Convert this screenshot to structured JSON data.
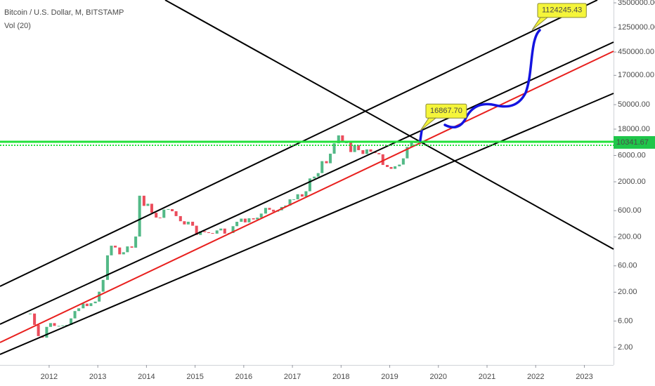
{
  "chart_data": {
    "type": "candlestick",
    "title": "Bitcoin / U.S. Dollar, M, BITSTAMP",
    "subtitle": "Vol (20)",
    "log_scale": true,
    "grid": false,
    "up_color": "#53b987",
    "down_color": "#eb4d5c",
    "x": [
      2011.58,
      2011.67,
      2011.75,
      2011.83,
      2011.92,
      2012.0,
      2012.08,
      2012.17,
      2012.25,
      2012.33,
      2012.42,
      2012.5,
      2012.58,
      2012.67,
      2012.75,
      2012.83,
      2012.92,
      2013.0,
      2013.08,
      2013.17,
      2013.25,
      2013.33,
      2013.42,
      2013.5,
      2013.58,
      2013.67,
      2013.75,
      2013.83,
      2013.92,
      2014.0,
      2014.08,
      2014.17,
      2014.25,
      2014.33,
      2014.42,
      2014.5,
      2014.58,
      2014.67,
      2014.75,
      2014.83,
      2014.92,
      2015.0,
      2015.08,
      2015.17,
      2015.25,
      2015.33,
      2015.42,
      2015.5,
      2015.58,
      2015.67,
      2015.75,
      2015.83,
      2015.92,
      2016.0,
      2016.08,
      2016.17,
      2016.25,
      2016.33,
      2016.42,
      2016.5,
      2016.58,
      2016.67,
      2016.75,
      2016.83,
      2016.92,
      2017.0,
      2017.08,
      2017.17,
      2017.25,
      2017.33,
      2017.42,
      2017.5,
      2017.58,
      2017.67,
      2017.75,
      2017.83,
      2017.92,
      2018.0,
      2018.08,
      2018.17,
      2018.25,
      2018.33,
      2018.42,
      2018.5,
      2018.58,
      2018.67,
      2018.75,
      2018.83,
      2018.92,
      2019.0,
      2019.08,
      2019.17,
      2019.25,
      2019.33,
      2019.42,
      2019.5,
      2019.58,
      2019.67
    ],
    "values": [
      8.2,
      5.1,
      3.2,
      3.0,
      4.7,
      5.5,
      4.9,
      4.9,
      5.0,
      5.1,
      6.7,
      9.1,
      10.2,
      12.4,
      11.2,
      12.6,
      13.5,
      20.4,
      33.4,
      93,
      139,
      129,
      97,
      106,
      135,
      128,
      204,
      1120,
      732,
      800,
      550,
      450,
      445,
      627,
      640,
      586,
      478,
      386,
      338,
      378,
      320,
      218,
      254,
      244,
      236,
      230,
      263,
      284,
      230,
      236,
      314,
      377,
      430,
      368,
      437,
      416,
      448,
      531,
      673,
      624,
      575,
      609,
      700,
      742,
      963,
      965,
      1190,
      1079,
      1348,
      2300,
      2480,
      2875,
      4735,
      4338,
      6468,
      9947,
      13880,
      10265,
      10326,
      6926,
      9240,
      7494,
      6391,
      7735,
      7030,
      6625,
      6300,
      4040,
      3709,
      3434,
      3816,
      4103,
      5320,
      8574,
      10817,
      10085,
      9600,
      10341.67
    ],
    "last_price": 10341.67,
    "last_price_color": "#1fc64a",
    "annotations": [
      {
        "value": 16867.7,
        "label": "16867.70"
      },
      {
        "value": 1124245.43,
        "label": "1124245.43"
      }
    ],
    "xlim": [
      2010.99,
      2023.6
    ],
    "xticks": [
      2012,
      2013,
      2014,
      2015,
      2016,
      2017,
      2018,
      2019,
      2020,
      2021,
      2022,
      2023
    ],
    "ylim": [
      0.96,
      3940000
    ],
    "yticks": [
      {
        "value": 3500000,
        "label": "3500000.00"
      },
      {
        "value": 1250000,
        "label": "1250000.00"
      },
      {
        "value": 450000,
        "label": "450000.00"
      },
      {
        "value": 170000,
        "label": "170000.00"
      },
      {
        "value": 50000,
        "label": "50000.00"
      },
      {
        "value": 18000,
        "label": "18000.00"
      },
      {
        "value": 6000,
        "label": "6000.00"
      },
      {
        "value": 2000,
        "label": "2000.00"
      },
      {
        "value": 600,
        "label": "600.00"
      },
      {
        "value": 200,
        "label": "200.00"
      },
      {
        "value": 60,
        "label": "60.00"
      },
      {
        "value": 20,
        "label": "20.00"
      },
      {
        "value": 6,
        "label": "6.00"
      },
      {
        "value": 2,
        "label": "2.00"
      }
    ]
  }
}
